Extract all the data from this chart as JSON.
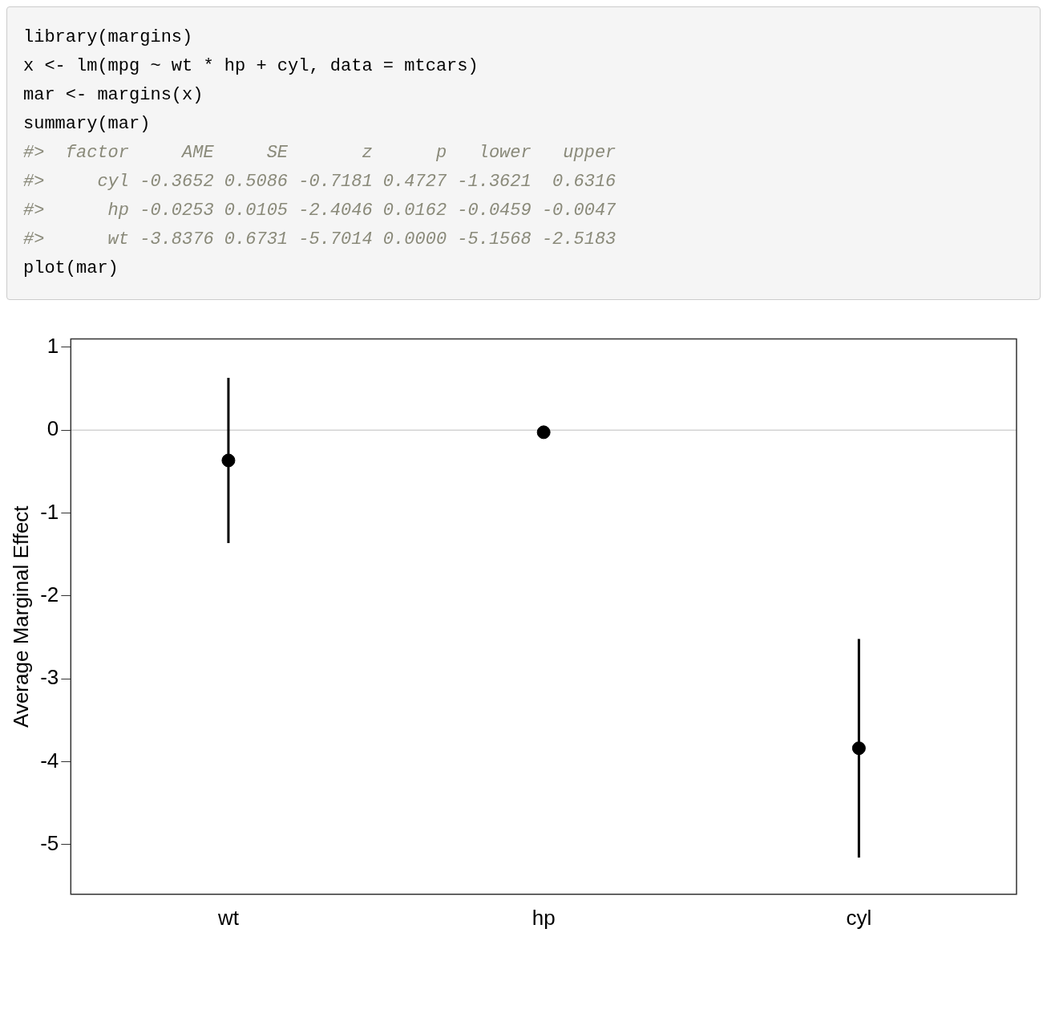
{
  "chart_data": {
    "type": "scatter",
    "ylabel": "Average Marginal Effect",
    "annotations": [
      "library(margins)",
      "x <- lm(mpg ~ wt * hp + cyl, data = mtcars)",
      "mar <- margins(x)",
      "summary(mar)",
      "#>  factor     AME     SE       z      p   lower   upper",
      "#>     cyl -0.3652 0.5086 -0.7181 0.4727 -1.3621  0.6316",
      "#>      hp -0.0253 0.0105 -2.4046 0.0162 -0.0459 -0.0047",
      "#>      wt -3.8376 0.6731 -5.7014 0.0000 -5.1568 -2.5183",
      "plot(mar)"
    ],
    "categories": [
      "wt",
      "hp",
      "cyl"
    ],
    "values": [
      -0.3652,
      -0.0253,
      -3.8376
    ],
    "errors": [
      [
        -1.3621,
        0.6316
      ],
      [
        -0.0459,
        -0.0047
      ],
      [
        -5.1568,
        -2.5183
      ]
    ],
    "color": "#000000",
    "marker": "circle",
    "ylim": [
      -5.6,
      1.1
    ],
    "yticks": [
      -5,
      -4,
      -3,
      -2,
      -1,
      0,
      1
    ],
    "ref_lines": [
      {
        "axis": "y",
        "value": 0,
        "color": "#d3d3d3"
      }
    ],
    "grid": false,
    "legend": false
  }
}
